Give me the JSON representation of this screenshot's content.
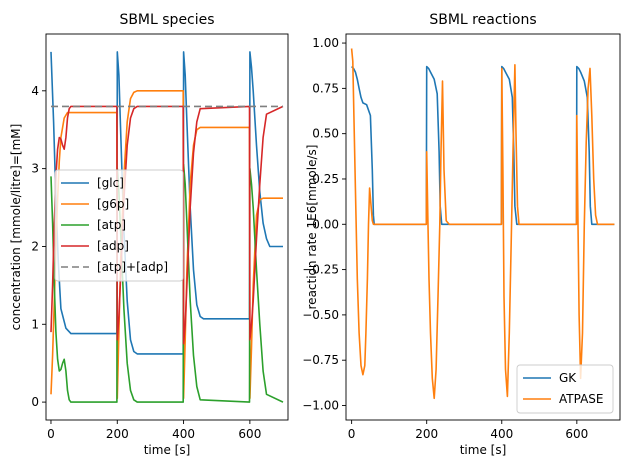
{
  "chart_data": [
    {
      "type": "line",
      "title": "SBML species",
      "xlabel": "time [s]",
      "ylabel": "concentration [mmole/litre]=[mM]",
      "xlim": [
        -15,
        715
      ],
      "ylim": [
        -0.23,
        4.73
      ],
      "xticks": [
        0,
        200,
        400,
        600
      ],
      "yticks": [
        0,
        1,
        2,
        3,
        4
      ],
      "legend_position": "center-left",
      "grid": false,
      "series": [
        {
          "name": "[glc]",
          "color": "#1f77b4",
          "dash": "",
          "x": [
            0,
            8,
            15,
            22,
            30,
            45,
            60,
            80,
            120,
            160,
            199,
            200,
            205,
            210,
            220,
            230,
            240,
            250,
            260,
            300,
            340,
            399,
            400,
            405,
            410,
            420,
            430,
            440,
            450,
            460,
            500,
            540,
            599,
            600,
            605,
            610,
            620,
            630,
            640,
            650,
            660,
            700
          ],
          "y": [
            4.5,
            3.6,
            2.6,
            1.8,
            1.2,
            0.95,
            0.88,
            0.88,
            0.88,
            0.88,
            0.88,
            4.5,
            4.2,
            3.5,
            2.2,
            1.3,
            0.8,
            0.65,
            0.62,
            0.62,
            0.62,
            0.62,
            4.5,
            4.2,
            3.6,
            2.5,
            1.7,
            1.25,
            1.1,
            1.07,
            1.07,
            1.07,
            1.07,
            4.5,
            4.3,
            4.0,
            3.3,
            2.7,
            2.3,
            2.1,
            2.0,
            2.0
          ]
        },
        {
          "name": "[g6p]",
          "color": "#ff7f0e",
          "dash": "",
          "x": [
            0,
            5,
            10,
            15,
            20,
            25,
            30,
            40,
            50,
            60,
            199,
            200,
            205,
            210,
            220,
            230,
            240,
            250,
            260,
            399,
            400,
            405,
            410,
            420,
            430,
            440,
            450,
            599,
            600,
            605,
            610,
            620,
            630,
            640,
            650,
            700
          ],
          "y": [
            0.1,
            0.6,
            1.3,
            2.0,
            2.6,
            3.1,
            3.4,
            3.65,
            3.72,
            3.72,
            3.72,
            0.05,
            0.9,
            1.8,
            2.9,
            3.6,
            3.9,
            3.98,
            4.0,
            4.0,
            0.05,
            0.8,
            1.7,
            2.8,
            3.3,
            3.5,
            3.53,
            3.53,
            0.05,
            0.7,
            1.5,
            2.4,
            2.6,
            2.62,
            2.62,
            2.62
          ]
        },
        {
          "name": "[atp]",
          "color": "#2ca02c",
          "dash": "",
          "x": [
            0,
            5,
            10,
            15,
            20,
            25,
            30,
            35,
            40,
            45,
            50,
            55,
            60,
            70,
            80,
            199,
            200,
            205,
            210,
            220,
            230,
            240,
            250,
            260,
            399,
            400,
            405,
            410,
            420,
            430,
            440,
            450,
            599,
            600,
            605,
            610,
            620,
            630,
            640,
            650,
            700
          ],
          "y": [
            2.9,
            2.3,
            1.5,
            0.9,
            0.55,
            0.4,
            0.42,
            0.5,
            0.55,
            0.4,
            0.15,
            0.03,
            0.0,
            0.0,
            0.0,
            0.0,
            3.0,
            2.7,
            2.2,
            1.2,
            0.5,
            0.15,
            0.03,
            0.0,
            0.0,
            3.05,
            2.8,
            2.3,
            1.3,
            0.6,
            0.2,
            0.03,
            0.0,
            3.0,
            2.8,
            2.5,
            1.7,
            1.0,
            0.4,
            0.1,
            0.0
          ]
        },
        {
          "name": "[adp]",
          "color": "#d62728",
          "dash": "",
          "x": [
            0,
            5,
            10,
            15,
            20,
            25,
            30,
            35,
            40,
            45,
            50,
            55,
            60,
            70,
            80,
            199,
            200,
            205,
            210,
            220,
            230,
            240,
            250,
            260,
            399,
            400,
            405,
            410,
            420,
            430,
            440,
            450,
            599,
            600,
            605,
            610,
            620,
            630,
            640,
            650,
            700
          ],
          "y": [
            0.9,
            1.5,
            2.3,
            2.9,
            3.25,
            3.4,
            3.38,
            3.3,
            3.25,
            3.4,
            3.65,
            3.77,
            3.8,
            3.8,
            3.8,
            3.8,
            0.8,
            1.1,
            1.6,
            2.6,
            3.3,
            3.65,
            3.77,
            3.8,
            3.8,
            0.75,
            1.0,
            1.5,
            2.5,
            3.2,
            3.6,
            3.77,
            3.8,
            0.8,
            1.0,
            1.3,
            2.1,
            2.8,
            3.4,
            3.7,
            3.8
          ]
        },
        {
          "name": "[atp]+[adp]",
          "color": "#7f7f7f",
          "dash": "7,4",
          "x": [
            0,
            700
          ],
          "y": [
            3.8,
            3.8
          ]
        }
      ]
    },
    {
      "type": "line",
      "title": "SBML reactions",
      "xlabel": "time [s]",
      "ylabel": "reaction rate 1E6[mmole/s]",
      "xlim": [
        -15,
        715
      ],
      "ylim": [
        -1.08,
        1.05
      ],
      "xticks": [
        0,
        200,
        400,
        600
      ],
      "yticks": [
        -1.0,
        -0.75,
        -0.5,
        -0.25,
        0.0,
        0.25,
        0.5,
        0.75,
        1.0
      ],
      "yticklabels": [
        "−1.00",
        "−0.75",
        "−0.50",
        "−0.25",
        "0.00",
        "0.25",
        "0.50",
        "0.75",
        "1.00"
      ],
      "legend_position": "lower-right",
      "grid": false,
      "series": [
        {
          "name": "GK",
          "color": "#1f77b4",
          "dash": "",
          "x": [
            0,
            5,
            10,
            15,
            20,
            25,
            30,
            40,
            50,
            55,
            58,
            60,
            80,
            199,
            200,
            205,
            210,
            220,
            228,
            233,
            236,
            240,
            260,
            399,
            400,
            405,
            410,
            420,
            428,
            432,
            435,
            440,
            460,
            599,
            600,
            605,
            610,
            620,
            628,
            633,
            636,
            640,
            700
          ],
          "y": [
            0.87,
            0.86,
            0.84,
            0.8,
            0.75,
            0.7,
            0.67,
            0.66,
            0.6,
            0.3,
            0.05,
            0.0,
            0.0,
            0.0,
            0.87,
            0.86,
            0.84,
            0.8,
            0.72,
            0.4,
            0.1,
            0.0,
            0.0,
            0.0,
            0.87,
            0.86,
            0.84,
            0.8,
            0.7,
            0.4,
            0.1,
            0.0,
            0.0,
            0.0,
            0.87,
            0.86,
            0.84,
            0.79,
            0.7,
            0.4,
            0.1,
            0.0,
            0.0
          ]
        },
        {
          "name": "ATPASE",
          "color": "#ff7f0e",
          "dash": "",
          "x": [
            0,
            3,
            6,
            10,
            15,
            20,
            25,
            30,
            35,
            38,
            42,
            45,
            48,
            52,
            55,
            58,
            62,
            80,
            199,
            200,
            203,
            206,
            210,
            215,
            220,
            225,
            230,
            235,
            238,
            242,
            246,
            252,
            260,
            399,
            400,
            403,
            406,
            410,
            415,
            420,
            425,
            430,
            435,
            438,
            442,
            446,
            452,
            460,
            599,
            600,
            603,
            606,
            610,
            615,
            620,
            625,
            630,
            635,
            640,
            645,
            650,
            655,
            660,
            700
          ],
          "y": [
            0.97,
            0.9,
            0.6,
            0.2,
            -0.3,
            -0.6,
            -0.78,
            -0.83,
            -0.78,
            -0.6,
            -0.3,
            0.0,
            0.2,
            0.1,
            0.02,
            0.0,
            0.0,
            0.0,
            0.0,
            0.4,
            0.05,
            -0.3,
            -0.6,
            -0.85,
            -0.96,
            -0.8,
            -0.4,
            0.0,
            0.4,
            0.79,
            0.3,
            0.02,
            0.0,
            0.0,
            0.86,
            0.3,
            -0.4,
            -0.8,
            -0.95,
            -0.6,
            -0.1,
            0.4,
            0.88,
            0.5,
            0.1,
            0.0,
            0.0,
            0.0,
            0.0,
            0.6,
            0.0,
            -0.5,
            -0.85,
            -0.6,
            0.0,
            0.45,
            0.75,
            0.86,
            0.6,
            0.25,
            0.05,
            0.0,
            0.0,
            0.0
          ]
        }
      ]
    }
  ]
}
